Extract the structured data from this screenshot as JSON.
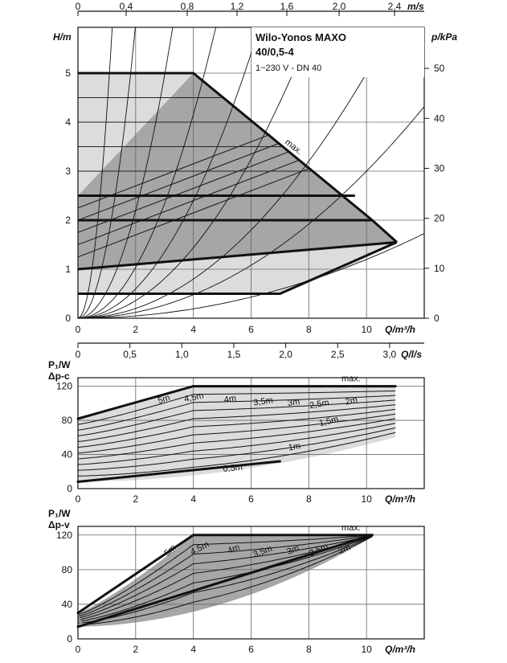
{
  "chart_data": [
    {
      "type": "line",
      "title": "Wilo-Yonos MAXO",
      "model": "40/0,5-4",
      "supply": "1~230 V - DN 40",
      "ylabel": "H/m",
      "ylabel_right": "p/kPa",
      "xlabel": "Q/m³/h",
      "xlabel_top": "m/s",
      "xlim": [
        0,
        12
      ],
      "ylim": [
        0,
        5
      ],
      "x_ticks": [
        "0",
        "2",
        "4",
        "6",
        "8",
        "10"
      ],
      "y_ticks": [
        "0",
        "1",
        "2",
        "3",
        "4",
        "5"
      ],
      "y_ticks_right": [
        "0",
        "10",
        "20",
        "30",
        "40",
        "50"
      ],
      "top_ticks": [
        "0",
        "0,4",
        "0,8",
        "1,2",
        "1,6",
        "2,0",
        "2,4"
      ],
      "max_label": "max.",
      "series": [
        {
          "name": "max.",
          "x": [
            0,
            4.0,
            10.2,
            11.05
          ],
          "y": [
            5.0,
            5.0,
            2.0,
            1.55
          ]
        },
        {
          "x": [
            0,
            9.6
          ],
          "y": [
            2.5,
            2.5
          ]
        },
        {
          "x": [
            0,
            10.2
          ],
          "y": [
            2.0,
            2.0
          ]
        },
        {
          "x": [
            0,
            11.05
          ],
          "y": [
            1.0,
            1.55
          ]
        },
        {
          "x": [
            0,
            7.0,
            11.05
          ],
          "y": [
            0.5,
            0.5,
            1.55
          ]
        }
      ]
    },
    {
      "type": "line",
      "ylabel": "P₁/W",
      "mode_label": "Δp-c",
      "xlabel": "Q/m³/h",
      "xlabel_top": "Q/l/s",
      "xlim": [
        0,
        12
      ],
      "ylim": [
        0,
        130
      ],
      "x_ticks": [
        "0",
        "2",
        "4",
        "6",
        "8",
        "10"
      ],
      "y_ticks": [
        "0",
        "40",
        "80",
        "120"
      ],
      "top_ticks": [
        "0",
        "0,5",
        "1,0",
        "1,5",
        "2,0",
        "2,5",
        "3,0"
      ],
      "max_label": "max.",
      "curve_labels": [
        "5m",
        "4,5m",
        "4m",
        "3,5m",
        "3m",
        "2,5m",
        "2m",
        "1,5m",
        "1m",
        "0,5m"
      ],
      "series": [
        {
          "name": "max.",
          "x": [
            4.0,
            11.0
          ],
          "y": [
            120,
            120
          ]
        },
        {
          "x": [
            0,
            4.0
          ],
          "y": [
            82,
            120
          ]
        },
        {
          "x": [
            0,
            7.0
          ],
          "y": [
            8,
            32
          ]
        }
      ]
    },
    {
      "type": "line",
      "ylabel": "P₁/W",
      "mode_label": "Δp-v",
      "xlabel": "Q/m³/h",
      "xlim": [
        0,
        12
      ],
      "ylim": [
        0,
        130
      ],
      "x_ticks": [
        "0",
        "2",
        "4",
        "6",
        "8",
        "10"
      ],
      "y_ticks": [
        "0",
        "40",
        "80",
        "120"
      ],
      "max_label": "max.",
      "curve_labels": [
        "5m",
        "4,5m",
        "4m",
        "3,5m",
        "3m",
        "2,5m",
        "2m"
      ],
      "series": [
        {
          "name": "max.",
          "x": [
            4.0,
            10.2
          ],
          "y": [
            120,
            120
          ]
        },
        {
          "x": [
            0,
            4.0
          ],
          "y": [
            30,
            120
          ]
        },
        {
          "x": [
            0,
            10.2
          ],
          "y": [
            14,
            120
          ]
        }
      ]
    }
  ]
}
